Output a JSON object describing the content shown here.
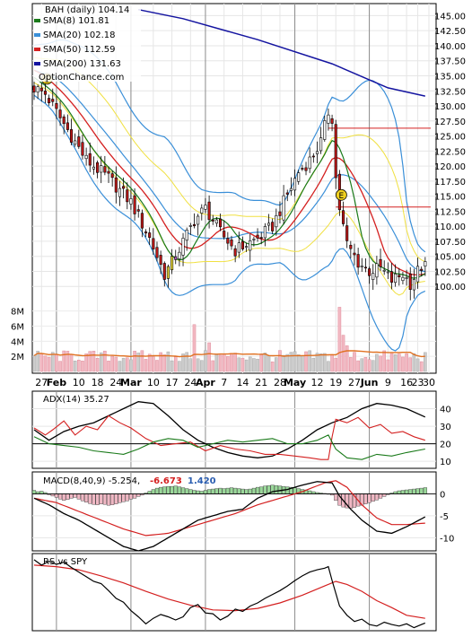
{
  "chart_data": [
    {
      "panel": "price",
      "type": "candlestick",
      "symbol_label": "BAH (daily) 104.14",
      "legend": [
        {
          "label": "SMA(8) 101.81",
          "color": "#1a7a1a"
        },
        {
          "label": "SMA(20) 102.18",
          "color": "#3a8fd8"
        },
        {
          "label": "SMA(50) 112.59",
          "color": "#d42020"
        },
        {
          "label": "SMA(200) 131.63",
          "color": "#1414a0"
        }
      ],
      "watermark": "OptionChance.com",
      "y_ticks": [
        "145.00",
        "142.50",
        "140.00",
        "137.50",
        "135.00",
        "132.50",
        "130.00",
        "127.50",
        "125.00",
        "122.50",
        "120.00",
        "117.50",
        "115.00",
        "112.50",
        "110.00",
        "107.50",
        "105.00",
        "102.50",
        "100.00"
      ],
      "ylim": [
        97.5,
        147
      ],
      "earnings_marker": "E",
      "earnings_days": [
        2,
        82
      ],
      "horizontal_levels": [
        126.3,
        113.2
      ],
      "key_closes": [
        [
          0,
          133
        ],
        [
          3,
          132
        ],
        [
          8,
          127
        ],
        [
          14,
          121
        ],
        [
          20,
          118
        ],
        [
          26,
          114
        ],
        [
          31,
          108
        ],
        [
          35,
          102
        ],
        [
          38,
          105
        ],
        [
          43,
          111
        ],
        [
          46,
          113
        ],
        [
          50,
          109
        ],
        [
          54,
          106
        ],
        [
          57,
          107
        ],
        [
          60,
          108
        ],
        [
          64,
          110
        ],
        [
          67,
          114
        ],
        [
          71,
          119
        ],
        [
          74,
          121
        ],
        [
          77,
          124
        ],
        [
          79,
          129
        ],
        [
          80,
          128
        ],
        [
          81,
          118
        ],
        [
          82,
          113
        ],
        [
          84,
          107
        ],
        [
          87,
          104
        ],
        [
          90,
          102.5
        ],
        [
          93,
          103
        ],
        [
          96,
          101
        ],
        [
          99,
          102
        ],
        [
          101,
          100.5
        ],
        [
          103,
          102.5
        ],
        [
          105,
          104.14
        ]
      ],
      "sma200": [
        [
          28,
          146
        ],
        [
          40,
          144.5
        ],
        [
          60,
          141
        ],
        [
          80,
          137
        ],
        [
          95,
          133
        ],
        [
          105,
          131.63
        ]
      ],
      "volume_ticks": [
        "8M",
        "6M",
        "4M",
        "2M"
      ],
      "volume_max": 9.5
    },
    {
      "panel": "adx",
      "type": "line",
      "title": "ADX(14) 35.27",
      "y_ticks": [
        "40",
        "30",
        "20",
        "10"
      ],
      "ylim": [
        6,
        50
      ],
      "reference_level": 20,
      "series": [
        {
          "color": "#000000",
          "values": [
            [
              0,
              28
            ],
            [
              4,
              22
            ],
            [
              8,
              27
            ],
            [
              12,
              30
            ],
            [
              16,
              32
            ],
            [
              20,
              36
            ],
            [
              24,
              40
            ],
            [
              28,
              44
            ],
            [
              32,
              43
            ],
            [
              36,
              36
            ],
            [
              40,
              28
            ],
            [
              44,
              22
            ],
            [
              48,
              18
            ],
            [
              52,
              15
            ],
            [
              56,
              13
            ],
            [
              60,
              12
            ],
            [
              64,
              13
            ],
            [
              68,
              17
            ],
            [
              72,
              22
            ],
            [
              76,
              28
            ],
            [
              80,
              32
            ],
            [
              84,
              35
            ],
            [
              88,
              40
            ],
            [
              92,
              43
            ],
            [
              96,
              42
            ],
            [
              100,
              40
            ],
            [
              105,
              35.27
            ]
          ]
        },
        {
          "color": "#d42020",
          "values": [
            [
              0,
              29
            ],
            [
              3,
              25
            ],
            [
              5,
              28
            ],
            [
              8,
              33
            ],
            [
              11,
              25
            ],
            [
              14,
              30
            ],
            [
              17,
              28
            ],
            [
              20,
              36
            ],
            [
              23,
              32
            ],
            [
              26,
              29
            ],
            [
              30,
              23
            ],
            [
              34,
              19
            ],
            [
              38,
              20
            ],
            [
              42,
              21
            ],
            [
              46,
              16
            ],
            [
              50,
              19
            ],
            [
              54,
              17
            ],
            [
              58,
              16
            ],
            [
              62,
              14
            ],
            [
              66,
              14
            ],
            [
              70,
              13
            ],
            [
              74,
              12
            ],
            [
              77,
              11
            ],
            [
              79,
              11
            ],
            [
              80,
              24
            ],
            [
              81,
              34
            ],
            [
              84,
              32
            ],
            [
              87,
              35
            ],
            [
              90,
              29
            ],
            [
              93,
              31
            ],
            [
              96,
              26
            ],
            [
              99,
              27
            ],
            [
              102,
              24
            ],
            [
              105,
              22
            ]
          ]
        },
        {
          "color": "#1a7a1a",
          "values": [
            [
              0,
              24
            ],
            [
              4,
              20
            ],
            [
              8,
              19
            ],
            [
              12,
              18
            ],
            [
              16,
              16
            ],
            [
              20,
              15
            ],
            [
              24,
              14
            ],
            [
              28,
              17
            ],
            [
              32,
              21
            ],
            [
              36,
              23
            ],
            [
              40,
              22
            ],
            [
              44,
              18
            ],
            [
              48,
              20
            ],
            [
              52,
              22
            ],
            [
              56,
              21
            ],
            [
              60,
              22
            ],
            [
              64,
              23
            ],
            [
              68,
              20
            ],
            [
              72,
              20
            ],
            [
              76,
              22
            ],
            [
              79,
              25
            ],
            [
              81,
              17
            ],
            [
              84,
              12
            ],
            [
              88,
              11
            ],
            [
              92,
              14
            ],
            [
              96,
              13
            ],
            [
              100,
              15
            ],
            [
              105,
              17
            ]
          ]
        }
      ]
    },
    {
      "panel": "macd",
      "type": "line",
      "title": "MACD(8,40,9) -5.254, ",
      "signal_label": "-6.673",
      "signal_color": "#d42020",
      "hist_label": "1.420",
      "hist_color": "#2a5db0",
      "y_ticks": [
        "0",
        "-5",
        "-10"
      ],
      "ylim": [
        -13,
        5
      ],
      "macd": [
        [
          0,
          -1
        ],
        [
          4,
          -2.5
        ],
        [
          8,
          -4.5
        ],
        [
          12,
          -6
        ],
        [
          16,
          -8
        ],
        [
          20,
          -10
        ],
        [
          24,
          -12
        ],
        [
          28,
          -13
        ],
        [
          32,
          -12
        ],
        [
          36,
          -10
        ],
        [
          40,
          -8
        ],
        [
          44,
          -6
        ],
        [
          48,
          -5
        ],
        [
          52,
          -4
        ],
        [
          56,
          -3.5
        ],
        [
          60,
          -1
        ],
        [
          64,
          0.5
        ],
        [
          68,
          1
        ],
        [
          72,
          2
        ],
        [
          76,
          2.8
        ],
        [
          80,
          2.5
        ],
        [
          82,
          -0.5
        ],
        [
          85,
          -3.5
        ],
        [
          88,
          -6
        ],
        [
          92,
          -8.5
        ],
        [
          96,
          -9
        ],
        [
          100,
          -7.5
        ],
        [
          105,
          -5.254
        ]
      ],
      "signal": [
        [
          0,
          -1
        ],
        [
          6,
          -2
        ],
        [
          12,
          -4
        ],
        [
          18,
          -6
        ],
        [
          24,
          -8
        ],
        [
          30,
          -9.5
        ],
        [
          36,
          -9
        ],
        [
          42,
          -7.5
        ],
        [
          48,
          -6
        ],
        [
          54,
          -4.5
        ],
        [
          60,
          -2.5
        ],
        [
          66,
          -1
        ],
        [
          72,
          0.5
        ],
        [
          78,
          2.5
        ],
        [
          81,
          3
        ],
        [
          84,
          1.5
        ],
        [
          88,
          -2.5
        ],
        [
          92,
          -5.5
        ],
        [
          96,
          -7
        ],
        [
          100,
          -7
        ],
        [
          105,
          -6.673
        ]
      ],
      "histogram": [
        0.8,
        0.5,
        0.6,
        0.3,
        -0.2,
        -0.5,
        -0.8,
        -1.2,
        -1.5,
        -1.3,
        -1.0,
        -0.8,
        -1.2,
        -1.6,
        -1.9,
        -2.2,
        -2.4,
        -2.5,
        -2.3,
        -2.4,
        -2.6,
        -2.5,
        -2.3,
        -2.0,
        -1.8,
        -1.6,
        -1.2,
        -1.0,
        -0.6,
        -0.3,
        0.2,
        0.6,
        1.0,
        1.3,
        1.5,
        1.6,
        1.7,
        1.7,
        1.8,
        1.6,
        1.4,
        1.2,
        1.0,
        0.8,
        0.7,
        0.6,
        0.8,
        1.0,
        1.1,
        1.2,
        1.3,
        1.2,
        1.3,
        1.4,
        1.3,
        1.2,
        1.1,
        1.0,
        1.1,
        1.3,
        1.5,
        1.6,
        1.8,
        1.9,
        2.0,
        1.9,
        1.8,
        1.7,
        1.6,
        1.5,
        1.4,
        1.2,
        1.0,
        0.9,
        0.7,
        0.5,
        0.3,
        0.2,
        0.1,
        0.0,
        -0.3,
        -1.5,
        -2.6,
        -3.0,
        -3.2,
        -3.3,
        -3.1,
        -2.8,
        -2.6,
        -2.3,
        -2.0,
        -1.7,
        -1.4,
        -1.0,
        -0.6,
        -0.2,
        0.2,
        0.5,
        0.7,
        0.8,
        0.9,
        1.0,
        1.1,
        1.2,
        1.3,
        1.42
      ]
    },
    {
      "panel": "rs",
      "type": "line",
      "title": "RS vs SPY",
      "ylim": [
        0,
        10
      ],
      "rs": [
        [
          0,
          9.2
        ],
        [
          2,
          8.5
        ],
        [
          4,
          9.0
        ],
        [
          6,
          8.6
        ],
        [
          8,
          8.9
        ],
        [
          10,
          8.2
        ],
        [
          12,
          7.6
        ],
        [
          14,
          7.0
        ],
        [
          16,
          6.4
        ],
        [
          18,
          6.1
        ],
        [
          20,
          5.2
        ],
        [
          22,
          4.2
        ],
        [
          24,
          3.7
        ],
        [
          26,
          2.6
        ],
        [
          28,
          1.8
        ],
        [
          30,
          0.9
        ],
        [
          32,
          1.6
        ],
        [
          34,
          2.1
        ],
        [
          36,
          1.8
        ],
        [
          38,
          1.4
        ],
        [
          40,
          1.8
        ],
        [
          42,
          3.0
        ],
        [
          44,
          3.4
        ],
        [
          46,
          2.3
        ],
        [
          48,
          2.2
        ],
        [
          50,
          1.4
        ],
        [
          52,
          1.9
        ],
        [
          54,
          2.8
        ],
        [
          56,
          2.5
        ],
        [
          58,
          3.2
        ],
        [
          60,
          3.6
        ],
        [
          62,
          4.2
        ],
        [
          64,
          4.7
        ],
        [
          66,
          5.2
        ],
        [
          68,
          5.8
        ],
        [
          70,
          6.5
        ],
        [
          72,
          7.1
        ],
        [
          74,
          7.6
        ],
        [
          76,
          7.9
        ],
        [
          78,
          8.1
        ],
        [
          79,
          8.3
        ],
        [
          80,
          6.5
        ],
        [
          82,
          3.2
        ],
        [
          84,
          2.0
        ],
        [
          86,
          1.2
        ],
        [
          88,
          1.5
        ],
        [
          90,
          0.8
        ],
        [
          92,
          0.6
        ],
        [
          94,
          1.1
        ],
        [
          96,
          0.8
        ],
        [
          98,
          0.6
        ],
        [
          100,
          0.9
        ],
        [
          102,
          0.4
        ],
        [
          104,
          0.8
        ],
        [
          105,
          1.0
        ]
      ],
      "rs_avg": [
        [
          0,
          8.5
        ],
        [
          6,
          8.3
        ],
        [
          12,
          7.9
        ],
        [
          18,
          7.1
        ],
        [
          24,
          6.2
        ],
        [
          30,
          5.1
        ],
        [
          36,
          4.1
        ],
        [
          42,
          3.3
        ],
        [
          48,
          2.7
        ],
        [
          54,
          2.6
        ],
        [
          60,
          2.9
        ],
        [
          66,
          3.6
        ],
        [
          72,
          4.6
        ],
        [
          78,
          5.8
        ],
        [
          81,
          6.4
        ],
        [
          84,
          6.0
        ],
        [
          88,
          5.1
        ],
        [
          92,
          3.9
        ],
        [
          96,
          3.0
        ],
        [
          100,
          2.0
        ],
        [
          105,
          1.6
        ]
      ]
    }
  ],
  "x_axis": {
    "labels": [
      "27",
      "Feb",
      "10",
      "18",
      "24",
      "Mar",
      "10",
      "17",
      "24",
      "Apr",
      "7",
      "14",
      "21",
      "28",
      "May",
      "12",
      "19",
      "27",
      "Jun",
      "9",
      "16",
      "23",
      "30"
    ],
    "label_days": [
      2,
      6,
      12,
      17,
      22,
      26,
      32,
      37,
      42,
      46,
      51,
      56,
      61,
      66,
      70,
      76,
      81,
      86,
      90,
      95,
      100,
      103,
      106
    ],
    "bold_labels": [
      "Feb",
      "Mar",
      "Apr",
      "May",
      "Jun"
    ],
    "month_separator_days": [
      6,
      26,
      46,
      70,
      90
    ]
  }
}
